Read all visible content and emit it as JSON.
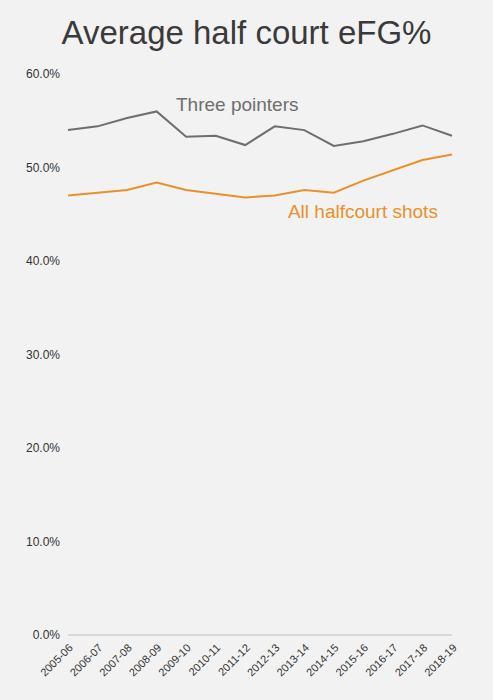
{
  "chart_data": {
    "type": "line",
    "title": "Average half court eFG%",
    "categories": [
      "2005-06",
      "2006-07",
      "2007-08",
      "2008-09",
      "2009-10",
      "2010-11",
      "2011-12",
      "2012-13",
      "2013-14",
      "2014-15",
      "2015-16",
      "2016-17",
      "2017-18",
      "2018-19"
    ],
    "series": [
      {
        "name": "Three pointers",
        "color": "#6e6e6e",
        "values": [
          54.0,
          54.4,
          55.3,
          56.0,
          53.3,
          53.4,
          52.4,
          54.4,
          54.0,
          52.3,
          52.8,
          53.6,
          54.5,
          53.4
        ]
      },
      {
        "name": "All halfcourt shots",
        "color": "#e8912b",
        "values": [
          47.0,
          47.3,
          47.6,
          48.4,
          47.6,
          47.2,
          46.8,
          47.0,
          47.6,
          47.3,
          48.6,
          49.7,
          50.8,
          51.4
        ]
      }
    ],
    "ylim": [
      0,
      60
    ],
    "yticks": [
      {
        "value": 0,
        "label": "0.0%"
      },
      {
        "value": 10,
        "label": "10.0%"
      },
      {
        "value": 20,
        "label": "20.0%"
      },
      {
        "value": 30,
        "label": "30.0%"
      },
      {
        "value": 40,
        "label": "40.0%"
      },
      {
        "value": 50,
        "label": "50.0%"
      },
      {
        "value": 60,
        "label": "60.0%"
      }
    ],
    "grid": false
  }
}
